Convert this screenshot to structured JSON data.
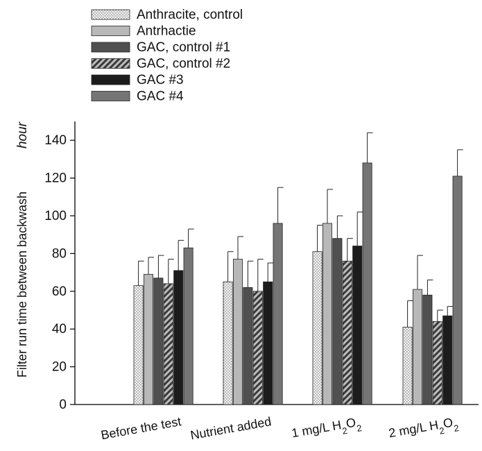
{
  "chart_data": {
    "type": "bar",
    "ylabel": "Filter run time between backwash",
    "unit_label": "hour",
    "ylim": [
      0,
      150
    ],
    "yticks": [
      0,
      20,
      40,
      60,
      80,
      100,
      120,
      140
    ],
    "error_bars": true,
    "legend_position": "top-left",
    "categories": [
      {
        "pre": "Before the test",
        "sub": "",
        "post": ""
      },
      {
        "pre": "Nutrient added",
        "sub": "",
        "post": ""
      },
      {
        "pre": "1 mg/L H",
        "sub": "2",
        "mid": "O",
        "sub2": "2"
      },
      {
        "pre": "2 mg/L H",
        "sub": "2",
        "mid": "O",
        "sub2": "2"
      }
    ],
    "series": [
      {
        "name": "Anthracite, control",
        "pattern": "dots",
        "values": [
          63,
          65,
          81,
          41
        ],
        "errors": [
          13,
          16,
          14,
          14
        ]
      },
      {
        "name": "Antrhactie",
        "pattern": "light",
        "values": [
          69,
          77,
          96,
          61
        ],
        "errors": [
          9,
          12,
          18,
          18
        ]
      },
      {
        "name": "GAC, control #1",
        "pattern": "darkgray",
        "values": [
          67,
          62,
          88,
          58
        ],
        "errors": [
          12,
          14,
          12,
          8
        ]
      },
      {
        "name": "GAC, control #2",
        "pattern": "hatch",
        "values": [
          64,
          60,
          76,
          44
        ],
        "errors": [
          13,
          17,
          12,
          6
        ]
      },
      {
        "name": "GAC #3",
        "pattern": "black",
        "values": [
          71,
          65,
          84,
          47
        ],
        "errors": [
          16,
          10,
          18,
          5
        ]
      },
      {
        "name": "GAC #4",
        "pattern": "medgray",
        "values": [
          83,
          96,
          128,
          121
        ],
        "errors": [
          10,
          19,
          16,
          14
        ]
      }
    ]
  }
}
